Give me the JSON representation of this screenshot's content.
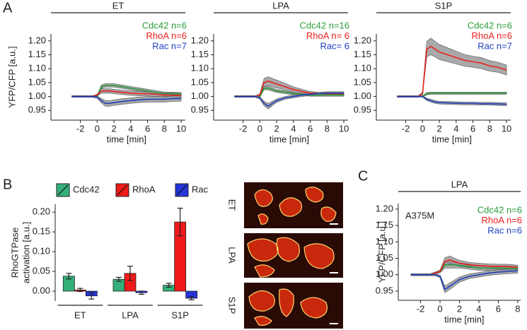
{
  "panel_labels": [
    "A",
    "B",
    "C"
  ],
  "micrographs": {
    "labels": [
      "ET",
      "LPA",
      "S1P"
    ]
  },
  "chart_data": [
    {
      "type": "line",
      "title": "ET",
      "ylabel": "YFP/CFP [a.u.]",
      "xlabel": "time [min]",
      "xlim": [
        -5.5,
        10.5
      ],
      "xticks": [
        -2,
        0,
        2,
        4,
        6,
        8,
        10
      ],
      "ylim": [
        0.915,
        1.225
      ],
      "yticks": [
        0.95,
        {
          "value": 1,
          "label": "1.00"
        },
        1.05,
        {
          "value": 1.1,
          "label": "1.10"
        },
        1.15,
        {
          "value": 1.2,
          "label": "1.20"
        }
      ],
      "legend": "upper right",
      "x": [
        -3,
        -2,
        -1,
        -0.5,
        0,
        0.5,
        1,
        1.5,
        2,
        3,
        4,
        5,
        6,
        7,
        8,
        9,
        10
      ],
      "series": [
        {
          "name": "Cdc42 n=6",
          "color": "#2a9d3a",
          "values": [
            1,
            1,
            1,
            1,
            1,
            1.035,
            1.04,
            1.04,
            1.04,
            1.035,
            1.03,
            1.025,
            1.02,
            1.015,
            1.01,
            1.01,
            1.008
          ],
          "error": [
            0.003,
            0.003,
            0.003,
            0.003,
            0.003,
            0.006,
            0.006,
            0.006,
            0.006,
            0.006,
            0.006,
            0.006,
            0.006,
            0.006,
            0.006,
            0.006,
            0.006
          ]
        },
        {
          "name": "RhoA n=6",
          "color": "#e8201c",
          "values": [
            1,
            1,
            1,
            1,
            1.005,
            1.02,
            1.02,
            1.02,
            1.018,
            1.015,
            1.012,
            1.01,
            1.01,
            1.008,
            1.005,
            1.005,
            1.003
          ],
          "error": [
            0.003,
            0.003,
            0.003,
            0.003,
            0.004,
            0.008,
            0.008,
            0.008,
            0.008,
            0.008,
            0.008,
            0.008,
            0.008,
            0.008,
            0.008,
            0.008,
            0.008
          ]
        },
        {
          "name": "Rac n=7",
          "color": "#1f3fbf",
          "values": [
            1,
            1,
            1,
            1,
            0.998,
            0.985,
            0.975,
            0.975,
            0.978,
            0.982,
            0.985,
            0.988,
            0.99,
            0.99,
            0.99,
            0.992,
            0.993
          ],
          "error": [
            0.003,
            0.003,
            0.003,
            0.003,
            0.004,
            0.008,
            0.01,
            0.01,
            0.01,
            0.01,
            0.01,
            0.01,
            0.01,
            0.01,
            0.01,
            0.01,
            0.01
          ]
        }
      ]
    },
    {
      "type": "line",
      "title": "LPA",
      "xlabel": "time [min]",
      "xlim": [
        -5.5,
        10.5
      ],
      "xticks": [
        -2,
        0,
        2,
        4,
        6,
        8,
        10
      ],
      "ylim": [
        0.915,
        1.225
      ],
      "yticks": [
        0.95,
        {
          "value": 1,
          "label": "1.00"
        },
        1.05,
        {
          "value": 1.1,
          "label": "1.10"
        },
        1.15,
        {
          "value": 1.2,
          "label": "1.20"
        }
      ],
      "legend": "upper right",
      "x": [
        -3,
        -2,
        -1,
        -0.5,
        0,
        0.5,
        1,
        1.5,
        2,
        3,
        4,
        5,
        6,
        7,
        8,
        9,
        10
      ],
      "series": [
        {
          "name": "Cdc42 n=16",
          "color": "#2a9d3a",
          "values": [
            1,
            1,
            1,
            1,
            1,
            1.03,
            1.03,
            1.025,
            1.02,
            1.015,
            1.01,
            1.008,
            1.005,
            1.005,
            1.005,
            1.005,
            1.005
          ],
          "error": [
            0.002,
            0.002,
            0.002,
            0.002,
            0.003,
            0.006,
            0.006,
            0.006,
            0.005,
            0.005,
            0.004,
            0.004,
            0.004,
            0.004,
            0.004,
            0.004,
            0.004
          ]
        },
        {
          "name": "RhoA n= 6",
          "color": "#e8201c",
          "values": [
            1,
            1,
            1,
            1,
            1.005,
            1.05,
            1.055,
            1.05,
            1.045,
            1.035,
            1.025,
            1.018,
            1.012,
            1.01,
            1.01,
            1.01,
            1.01
          ],
          "error": [
            0.003,
            0.003,
            0.003,
            0.003,
            0.005,
            0.015,
            0.016,
            0.015,
            0.014,
            0.012,
            0.01,
            0.008,
            0.006,
            0.005,
            0.005,
            0.005,
            0.005
          ]
        },
        {
          "name": "Rac= 6",
          "color": "#1f3fbf",
          "values": [
            1,
            1,
            1,
            1,
            0.995,
            0.975,
            0.965,
            0.975,
            0.985,
            0.995,
            1,
            1.005,
            1.008,
            1.01,
            1.012,
            1.012,
            1.012
          ],
          "error": [
            0.003,
            0.003,
            0.003,
            0.003,
            0.004,
            0.008,
            0.01,
            0.008,
            0.006,
            0.005,
            0.005,
            0.005,
            0.005,
            0.005,
            0.005,
            0.005,
            0.005
          ]
        }
      ]
    },
    {
      "type": "line",
      "title": "S1P",
      "xlabel": "time [min]",
      "xlim": [
        -5.5,
        10.5
      ],
      "xticks": [
        -2,
        0,
        2,
        4,
        6,
        8,
        10
      ],
      "ylim": [
        0.915,
        1.225
      ],
      "yticks": [
        0.95,
        {
          "value": 1,
          "label": "1.00"
        },
        1.05,
        {
          "value": 1.1,
          "label": "1.10"
        },
        1.15,
        {
          "value": 1.2,
          "label": "1.20"
        }
      ],
      "legend": "upper right",
      "x": [
        -3,
        -2,
        -1,
        -0.5,
        0,
        0.5,
        1,
        1.5,
        2,
        3,
        4,
        5,
        6,
        7,
        8,
        9,
        10
      ],
      "series": [
        {
          "name": "Cdc42 n=6",
          "color": "#2a9d3a",
          "values": [
            1,
            1,
            1,
            1,
            1,
            1.01,
            1.012,
            1.012,
            1.012,
            1.012,
            1.012,
            1.012,
            1.012,
            1.012,
            1.012,
            1.012,
            1.012
          ],
          "error": [
            0.002,
            0.002,
            0.002,
            0.002,
            0.002,
            0.004,
            0.004,
            0.004,
            0.004,
            0.004,
            0.004,
            0.004,
            0.004,
            0.004,
            0.004,
            0.004,
            0.004
          ]
        },
        {
          "name": "RhoA n=6",
          "color": "#e8201c",
          "values": [
            1,
            1,
            1,
            1,
            1.01,
            1.17,
            1.18,
            1.17,
            1.16,
            1.15,
            1.14,
            1.13,
            1.125,
            1.12,
            1.11,
            1.105,
            1.095
          ],
          "error": [
            0.003,
            0.003,
            0.003,
            0.003,
            0.006,
            0.028,
            0.03,
            0.028,
            0.027,
            0.025,
            0.023,
            0.021,
            0.02,
            0.02,
            0.019,
            0.018,
            0.018
          ]
        },
        {
          "name": "Rac n=7",
          "color": "#1f3fbf",
          "values": [
            1,
            1,
            1,
            1,
            1,
            0.99,
            0.985,
            0.98,
            0.978,
            0.977,
            0.976,
            0.975,
            0.975,
            0.974,
            0.974,
            0.973,
            0.972
          ],
          "error": [
            0.002,
            0.002,
            0.002,
            0.002,
            0.002,
            0.004,
            0.005,
            0.005,
            0.005,
            0.005,
            0.005,
            0.005,
            0.005,
            0.005,
            0.005,
            0.005,
            0.005
          ]
        }
      ]
    },
    {
      "type": "bar",
      "ylabel": [
        "RhoGTPase",
        "activation [a.u.]"
      ],
      "categories": [
        "ET",
        "LPA",
        "S1P"
      ],
      "ylim": [
        -0.025,
        0.22
      ],
      "yticks": [
        {
          "value": 0,
          "label": "0.00"
        },
        0.05,
        {
          "value": 0.1,
          "label": "0.10"
        },
        0.15,
        {
          "value": 0.2,
          "label": "0.20"
        }
      ],
      "legend": "top",
      "series": [
        {
          "name": "Cdc42",
          "color": "#33b07a",
          "values": [
            0.038,
            0.03,
            0.015
          ],
          "errors": [
            0.007,
            0.005,
            0.005
          ]
        },
        {
          "name": "RhoA",
          "color": "#f01a1a",
          "values": [
            0.003,
            0.045,
            0.175
          ],
          "errors": [
            0.004,
            0.018,
            0.035
          ]
        },
        {
          "name": "Rac",
          "color": "#2436d8",
          "values": [
            -0.012,
            -0.004,
            -0.018
          ],
          "errors": [
            0.008,
            0.004,
            0.004
          ]
        }
      ]
    },
    {
      "type": "line",
      "title": "LPA",
      "ylabel": "YFP/CFP [a.u.]",
      "xlabel": "time [min]",
      "annotation": "A375M",
      "xlim": [
        -4.3,
        8.3
      ],
      "xticks": [
        -2,
        0,
        2,
        4,
        6,
        8
      ],
      "ylim": [
        0.922,
        1.217
      ],
      "yticks": [
        0.95,
        {
          "value": 1,
          "label": "1.00"
        },
        1.05,
        {
          "value": 1.1,
          "label": "1.10"
        },
        1.15,
        {
          "value": 1.2,
          "label": "1.20"
        }
      ],
      "legend": "upper right",
      "x": [
        -3,
        -2,
        -1,
        -0.5,
        0,
        0.5,
        1,
        1.5,
        2,
        3,
        4,
        5,
        6,
        7,
        8
      ],
      "series": [
        {
          "name": "Cdc42 n=6",
          "color": "#2a9d3a",
          "values": [
            1,
            1,
            1,
            1.005,
            1.01,
            1.03,
            1.03,
            1.03,
            1.028,
            1.025,
            1.02,
            1.02,
            1.02,
            1.02,
            1.018
          ],
          "error": [
            0.003,
            0.003,
            0.003,
            0.003,
            0.004,
            0.01,
            0.01,
            0.009,
            0.008,
            0.008,
            0.007,
            0.007,
            0.007,
            0.007,
            0.007
          ]
        },
        {
          "name": "RhoA n=6",
          "color": "#e8201c",
          "values": [
            1,
            1,
            1,
            1.005,
            1.01,
            1.04,
            1.045,
            1.04,
            1.035,
            1.03,
            1.028,
            1.026,
            1.025,
            1.025,
            1.022
          ],
          "error": [
            0.003,
            0.003,
            0.003,
            0.003,
            0.004,
            0.012,
            0.012,
            0.01,
            0.009,
            0.008,
            0.007,
            0.007,
            0.007,
            0.007,
            0.007
          ]
        },
        {
          "name": "Rac n=6",
          "color": "#1f3fbf",
          "values": [
            1,
            1,
            1,
            1,
            0.995,
            0.955,
            0.965,
            0.975,
            0.985,
            0.995,
            1,
            1.005,
            1.008,
            1.01,
            1.012
          ],
          "error": [
            0.003,
            0.003,
            0.003,
            0.003,
            0.004,
            0.01,
            0.01,
            0.009,
            0.008,
            0.007,
            0.007,
            0.007,
            0.007,
            0.007,
            0.007
          ]
        }
      ]
    }
  ]
}
